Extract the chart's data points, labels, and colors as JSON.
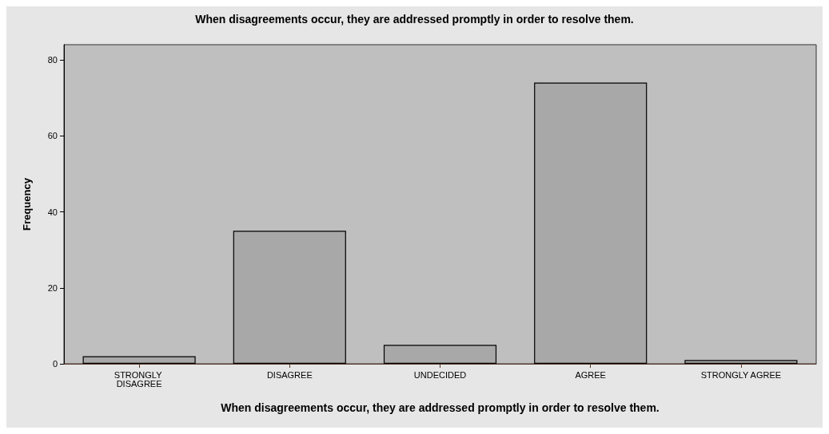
{
  "chart_data": {
    "type": "bar",
    "title": "When disagreements occur, they are addressed promptly in order to resolve them.",
    "xlabel": "When disagreements occur, they are addressed promptly in order to resolve them.",
    "ylabel": "Frequency",
    "categories": [
      "STRONGLY DISAGREE",
      "DISAGREE",
      "UNDECIDED",
      "AGREE",
      "STRONGLY AGREE"
    ],
    "values": [
      2,
      35,
      5,
      74,
      1
    ],
    "color": "#a8a8a8",
    "ylim": [
      0,
      84
    ],
    "yticks": [
      0,
      20,
      40,
      60,
      80
    ],
    "grid": false
  }
}
